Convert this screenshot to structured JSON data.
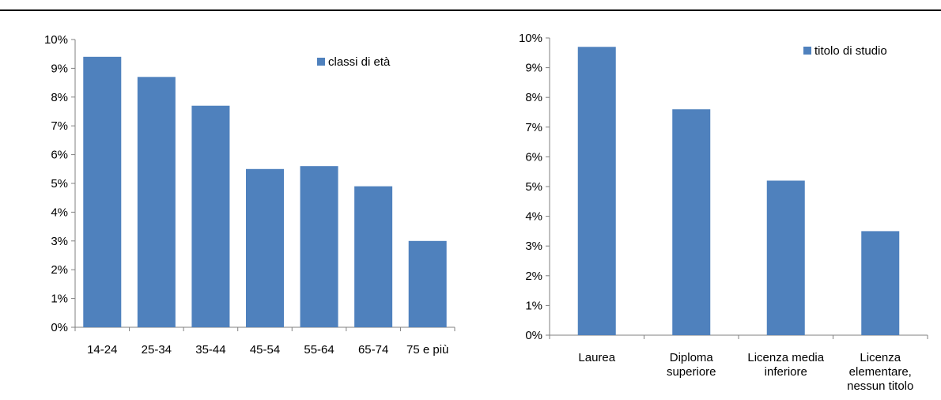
{
  "chart_data": [
    {
      "type": "bar",
      "categories": [
        "14-24",
        "25-34",
        "35-44",
        "45-54",
        "55-64",
        "65-74",
        "75 e più"
      ],
      "series": [
        {
          "name": "classi di età",
          "values": [
            9.4,
            8.7,
            7.7,
            5.5,
            5.6,
            4.9,
            3.0
          ]
        }
      ],
      "ylim": [
        0,
        10
      ],
      "yticks": [
        "0%",
        "1%",
        "2%",
        "3%",
        "4%",
        "5%",
        "6%",
        "7%",
        "8%",
        "9%",
        "10%"
      ],
      "grid": false,
      "legend": "top-right",
      "color": "#4f81bd"
    },
    {
      "type": "bar",
      "categories": [
        "Laurea",
        "Diploma superiore",
        "Licenza media inferiore",
        "Licenza elementare, nessun titolo"
      ],
      "series": [
        {
          "name": "titolo di studio",
          "values": [
            9.7,
            7.6,
            5.2,
            3.5
          ]
        }
      ],
      "ylim": [
        0,
        10
      ],
      "yticks": [
        "0%",
        "1%",
        "2%",
        "3%",
        "4%",
        "5%",
        "6%",
        "7%",
        "8%",
        "9%",
        "10%"
      ],
      "grid": false,
      "legend": "top-right",
      "color": "#4f81bd"
    }
  ]
}
